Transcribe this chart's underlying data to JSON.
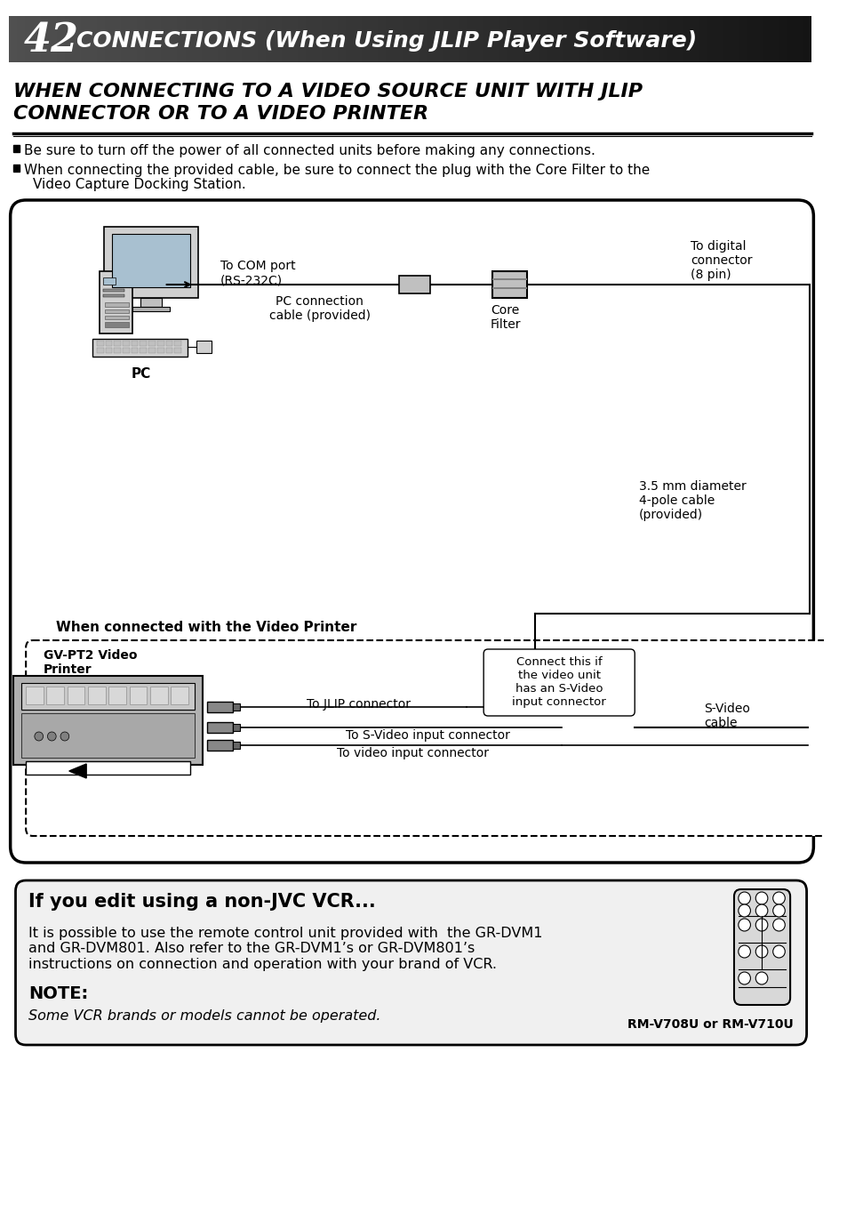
{
  "page_number": "42",
  "header_title": "CONNECTIONS (When Using JLIP Player Software)",
  "section_title_line1": "WHEN CONNECTING TO A VIDEO SOURCE UNIT WITH JLIP",
  "section_title_line2": "CONNECTOR OR TO A VIDEO PRINTER",
  "bullet1": "Be sure to turn off the power of all connected units before making any connections.",
  "bullet2": "When connecting the provided cable, be sure to connect the plug with the Core Filter to the\n   Video Capture Docking Station.",
  "label_pc": "PC",
  "label_com_port": "To COM port\n(RS-232C)",
  "label_pc_cable": "PC connection\ncable (provided)",
  "label_core_filter": "Core\nFilter",
  "label_digital_connector": "To digital\nconnector\n(8 pin)",
  "label_35mm": "3.5 mm diameter\n4-pole cable\n(provided)",
  "label_video_printer_section": "When connected with the Video Printer",
  "label_gv_pt2": "GV-PT2 Video\nPrinter",
  "label_jlip": "To JLIP connector",
  "label_connect_this": "Connect this if\nthe video unit\nhas an S-Video\ninput connector",
  "label_svideo_input": "To S-Video input connector",
  "label_video_input": "To video input connector",
  "label_svideo_cable": "S-Video\ncable",
  "note_title": "If you edit using a non-JVC VCR...",
  "note_body": "It is possible to use the remote control unit provided with  the GR-DVM1\nand GR-DVM801. Also refer to the GR-DVM1’s or GR-DVM801’s\ninstructions on connection and operation with your brand of VCR.",
  "note_label": "NOTE:",
  "note_italic": "Some VCR brands or models cannot be operated.",
  "note_rm": "RM-V708U or RM-V710U",
  "bg_color": "#ffffff",
  "header_bg_start": "#404040",
  "header_bg_end": "#000000",
  "header_text_color": "#ffffff",
  "section_title_color": "#000000",
  "body_text_color": "#000000",
  "diagram_bg": "#f5f5f5",
  "note_box_bg": "#f0f0f0"
}
